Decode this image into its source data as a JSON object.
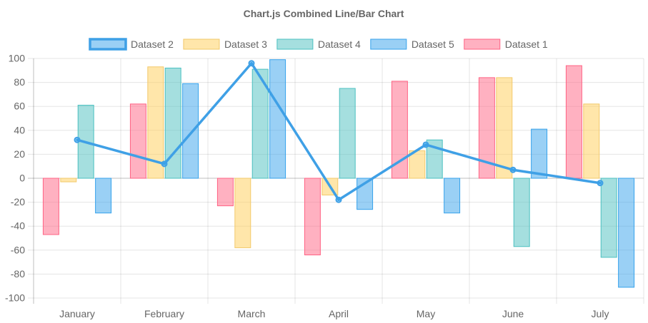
{
  "chart_data": {
    "type": "bar",
    "title": "Chart.js Combined Line/Bar Chart",
    "categories": [
      "January",
      "February",
      "March",
      "April",
      "May",
      "June",
      "July"
    ],
    "ylim": [
      -100,
      100
    ],
    "yticks": [
      100,
      80,
      60,
      40,
      20,
      0,
      -20,
      -40,
      -60,
      -80,
      -100
    ],
    "grid": true,
    "legend_position": "top",
    "legend_order": [
      "Dataset 2",
      "Dataset 3",
      "Dataset 4",
      "Dataset 5",
      "Dataset 1"
    ],
    "series": [
      {
        "name": "Dataset 1",
        "type": "bar",
        "values": [
          -47,
          62,
          -23,
          -64,
          81,
          84,
          94
        ],
        "fill": "rgba(255,99,132,0.5)",
        "stroke": "#ff6384"
      },
      {
        "name": "Dataset 2",
        "type": "line",
        "values": [
          32,
          12,
          96,
          -18,
          28,
          7,
          -4
        ],
        "fill": "rgba(54,162,235,0.5)",
        "stroke": "#3fa0e6"
      },
      {
        "name": "Dataset 3",
        "type": "bar",
        "values": [
          -3,
          93,
          -58,
          -14,
          23,
          84,
          62
        ],
        "fill": "rgba(255,205,86,0.5)",
        "stroke": "#f2c96b"
      },
      {
        "name": "Dataset 4",
        "type": "bar",
        "values": [
          61,
          92,
          91,
          75,
          32,
          -57,
          -66
        ],
        "fill": "rgba(75,192,192,0.5)",
        "stroke": "#4bc0c0"
      },
      {
        "name": "Dataset 5",
        "type": "bar",
        "values": [
          -29,
          79,
          99,
          -26,
          -29,
          41,
          -91
        ],
        "fill": "rgba(54,162,235,0.5)",
        "stroke": "#36a2eb"
      }
    ]
  }
}
